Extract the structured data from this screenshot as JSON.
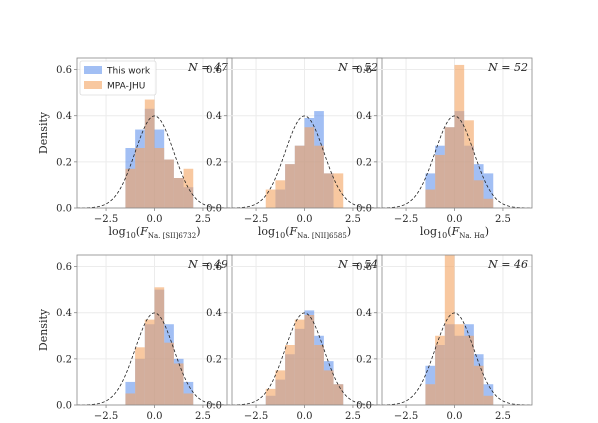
{
  "colors": {
    "this_work": "#6495ed",
    "mpa_jhu": "#f4a460",
    "gaussian": "#222222",
    "grid": "#ececec",
    "frame": "#888888"
  },
  "legend": {
    "entries": [
      {
        "label": "This work",
        "color": "#6495ed"
      },
      {
        "label": "MPA-JHU",
        "color": "#f4a460"
      }
    ],
    "placement": "top-left of first panel"
  },
  "labels": {
    "ylabel": "Density",
    "xlabel_sii": "log10(F Na. [SII]6732)",
    "xlabel_nii": "log10(F Na. [NII]6585)",
    "xlabel_ha": "log10(F Na. Hα)"
  },
  "chart_data": [
    {
      "type": "bar",
      "panel": "top-left",
      "n_label": "N = 47",
      "xlim": [
        -4,
        4
      ],
      "ylim": [
        0,
        0.65
      ],
      "xticks": [
        "-2.5",
        "0.0",
        "2.5"
      ],
      "yticks": [
        "0.0",
        "0.2",
        "0.4",
        "0.6"
      ],
      "bin_edges": [
        -1.5,
        -1.0,
        -0.5,
        0.0,
        0.5,
        1.0,
        1.5,
        2.0
      ],
      "series": [
        {
          "name": "This work",
          "values": [
            0.26,
            0.34,
            0.43,
            0.34,
            0.21,
            0.13,
            0.09
          ]
        },
        {
          "name": "MPA-JHU",
          "values": [
            0.17,
            0.26,
            0.47,
            0.26,
            0.21,
            0.13,
            0.17
          ]
        }
      ],
      "gaussian": {
        "mean": 0,
        "sigma": 1
      }
    },
    {
      "type": "bar",
      "panel": "top-middle",
      "n_label": "N = 52",
      "xlim": [
        -4,
        4
      ],
      "ylim": [
        0,
        0.65
      ],
      "xticks": [
        "-2.5",
        "0.0",
        "2.5"
      ],
      "yticks": [
        "0.0",
        "0.2",
        "0.4",
        "0.6"
      ],
      "bin_edges": [
        -2.0,
        -1.5,
        -1.0,
        -0.5,
        0.0,
        0.5,
        1.0,
        1.5,
        2.0
      ],
      "series": [
        {
          "name": "This work",
          "values": [
            0.0,
            0.08,
            0.19,
            0.27,
            0.39,
            0.42,
            0.15,
            0.0
          ]
        },
        {
          "name": "MPA-JHU",
          "values": [
            0.08,
            0.12,
            0.19,
            0.27,
            0.35,
            0.27,
            0.15,
            0.15
          ]
        }
      ],
      "gaussian": {
        "mean": 0,
        "sigma": 1
      }
    },
    {
      "type": "bar",
      "panel": "top-right",
      "n_label": "N = 52",
      "xlim": [
        -4,
        4
      ],
      "ylim": [
        0,
        0.65
      ],
      "xticks": [
        "-2.5",
        "0.0",
        "2.5"
      ],
      "yticks": [
        "0.0",
        "0.2",
        "0.4",
        "0.6"
      ],
      "bin_edges": [
        -1.5,
        -1.0,
        -0.5,
        0.0,
        0.5,
        1.0,
        1.5,
        2.0
      ],
      "series": [
        {
          "name": "This work",
          "values": [
            0.15,
            0.27,
            0.35,
            0.42,
            0.27,
            0.19,
            0.15
          ]
        },
        {
          "name": "MPA-JHU",
          "values": [
            0.08,
            0.23,
            0.35,
            0.62,
            0.38,
            0.12,
            0.04
          ]
        }
      ],
      "gaussian": {
        "mean": 0,
        "sigma": 1
      }
    },
    {
      "type": "bar",
      "panel": "bottom-left",
      "n_label": "N = 49",
      "xlim": [
        -4,
        4
      ],
      "ylim": [
        0,
        0.65
      ],
      "xticks": [
        "-2.5",
        "0.0",
        "2.5"
      ],
      "yticks": [
        "0.0",
        "0.2",
        "0.4",
        "0.6"
      ],
      "bin_edges": [
        -1.5,
        -1.0,
        -0.5,
        0.0,
        0.5,
        1.0,
        1.5,
        2.0
      ],
      "series": [
        {
          "name": "This work",
          "values": [
            0.1,
            0.2,
            0.35,
            0.5,
            0.35,
            0.2,
            0.1
          ]
        },
        {
          "name": "MPA-JHU",
          "values": [
            0.05,
            0.25,
            0.37,
            0.51,
            0.27,
            0.18,
            0.05
          ]
        }
      ],
      "gaussian": {
        "mean": 0,
        "sigma": 1
      }
    },
    {
      "type": "bar",
      "panel": "bottom-middle",
      "n_label": "N = 54",
      "xlim": [
        -4,
        4
      ],
      "ylim": [
        0,
        0.65
      ],
      "xticks": [
        "-2.5",
        "0.0",
        "2.5"
      ],
      "yticks": [
        "0.0",
        "0.2",
        "0.4",
        "0.6"
      ],
      "bin_edges": [
        -2.0,
        -1.5,
        -1.0,
        -0.5,
        0.0,
        0.5,
        1.0,
        1.5,
        2.0
      ],
      "series": [
        {
          "name": "This work",
          "values": [
            0.04,
            0.11,
            0.22,
            0.33,
            0.41,
            0.3,
            0.19,
            0.09
          ]
        },
        {
          "name": "MPA-JHU",
          "values": [
            0.07,
            0.15,
            0.26,
            0.37,
            0.39,
            0.26,
            0.15,
            0.09
          ]
        }
      ],
      "gaussian": {
        "mean": 0,
        "sigma": 1
      }
    },
    {
      "type": "bar",
      "panel": "bottom-right",
      "n_label": "N = 46",
      "xlim": [
        -4,
        4
      ],
      "ylim": [
        0,
        0.65
      ],
      "xticks": [
        "-2.5",
        "0.0",
        "2.5"
      ],
      "yticks": [
        "0.0",
        "0.2",
        "0.4",
        "0.6"
      ],
      "bin_edges": [
        -1.5,
        -1.0,
        -0.5,
        0.0,
        0.5,
        1.0,
        1.5,
        2.0
      ],
      "series": [
        {
          "name": "This work",
          "values": [
            0.17,
            0.26,
            0.35,
            0.3,
            0.35,
            0.22,
            0.09
          ]
        },
        {
          "name": "MPA-JHU",
          "values": [
            0.09,
            0.3,
            0.65,
            0.35,
            0.3,
            0.17,
            0.04
          ]
        }
      ],
      "gaussian": {
        "mean": 0,
        "sigma": 1
      }
    }
  ]
}
